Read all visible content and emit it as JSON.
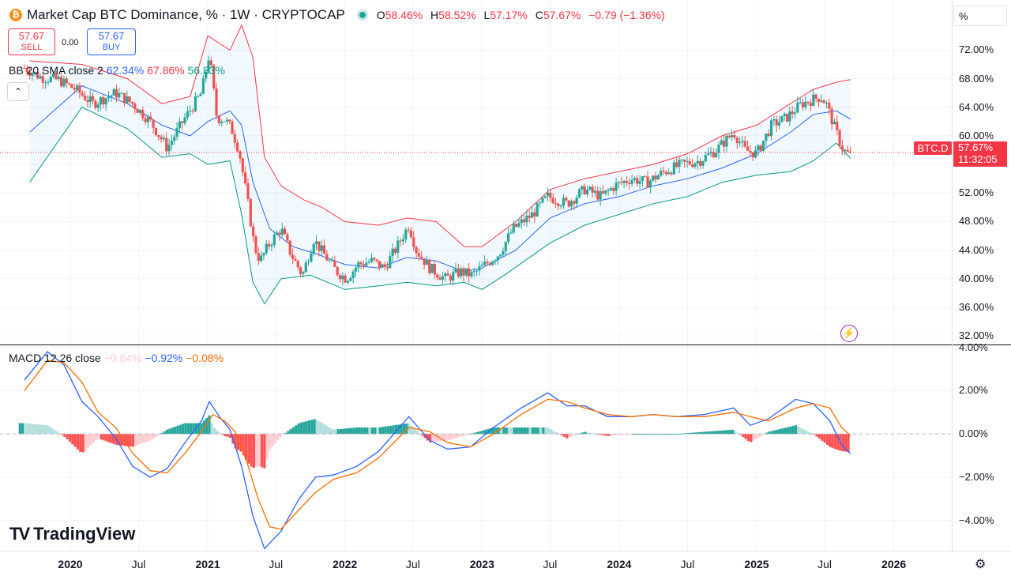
{
  "header": {
    "coin_icon": "bitcoin-icon",
    "coin_glyph": "₿",
    "title": "Market Cap BTC Dominance, % · 1W · CRYPTOCAP",
    "ohlc": {
      "o_label": "O",
      "o": "58.46%",
      "h_label": "H",
      "h": "58.52%",
      "l_label": "L",
      "l": "57.17%",
      "c_label": "C",
      "c": "57.67%",
      "change": "−0.79 (−1.36%)"
    }
  },
  "trade": {
    "sell_price": "57.67",
    "sell_label": "SELL",
    "spread": "0.00",
    "buy_price": "57.67",
    "buy_label": "BUY"
  },
  "indicators": {
    "bb_label": "BB 20 SMA close 2",
    "bb_basis": "62.34%",
    "bb_upper": "67.86%",
    "bb_lower": "56.83%",
    "macd_label": "MACD 12 26 close",
    "macd_hist": "−0.84%",
    "macd_line": "−0.92%",
    "macd_signal": "−0.08%",
    "collapse_glyph": "⌃"
  },
  "scale_button": "%",
  "price_tag": {
    "symbol": "BTC.D",
    "value": "57.67%",
    "countdown": "11:32:05"
  },
  "logo_text": "TradingView",
  "colors": {
    "up": "#26a69a",
    "down": "#ef5350",
    "bb_upper": "#f23645",
    "bb_basis": "#2962ff",
    "bb_lower": "#089981",
    "macd_line": "#2962ff",
    "signal_line": "#ff6d00",
    "hist_up_strong": "#26a69a",
    "hist_up_weak": "#b2dfdb",
    "hist_down_strong": "#ff5252",
    "hist_down_weak": "#ffcdd2"
  },
  "chart_data": [
    {
      "type": "candlestick",
      "title": "Market Cap BTC Dominance, % · 1W · CRYPTOCAP",
      "y_axis_ticks": [
        "72.00%",
        "68.00%",
        "64.00%",
        "60.00%",
        "52.00%",
        "48.00%",
        "44.00%",
        "40.00%",
        "36.00%",
        "32.00%"
      ],
      "y_axis_tick_values": [
        72,
        68,
        64,
        60,
        52,
        48,
        44,
        40,
        36,
        32
      ],
      "ylim": [
        30.8,
        76.8
      ],
      "x_axis_ticks": [
        "2020",
        "Jul",
        "2021",
        "Jul",
        "2022",
        "Jul",
        "2023",
        "Jul",
        "2024",
        "Jul",
        "2025",
        "Jul",
        "2026"
      ],
      "x_tick_dates": [
        "2020-01-01",
        "2020-07-01",
        "2021-01-01",
        "2021-07-01",
        "2022-01-01",
        "2022-07-01",
        "2023-01-01",
        "2023-07-01",
        "2024-01-01",
        "2024-07-01",
        "2025-01-01",
        "2025-07-01",
        "2026-01-01"
      ],
      "last_close": 57.67,
      "close_path": [
        [
          "2019-09-01",
          69.5
        ],
        [
          "2019-10-15",
          68.2
        ],
        [
          "2019-12-01",
          67.8
        ],
        [
          "2020-01-15",
          66.5
        ],
        [
          "2020-03-01",
          64.5
        ],
        [
          "2020-05-01",
          66.0
        ],
        [
          "2020-06-15",
          64.5
        ],
        [
          "2020-08-01",
          62.0
        ],
        [
          "2020-09-15",
          58.3
        ],
        [
          "2020-11-01",
          62.5
        ],
        [
          "2020-12-15",
          66.0
        ],
        [
          "2021-01-05",
          71.5
        ],
        [
          "2021-01-25",
          62.5
        ],
        [
          "2021-02-15",
          62.3
        ],
        [
          "2021-03-05",
          61.0
        ],
        [
          "2021-03-25",
          58.0
        ],
        [
          "2021-04-15",
          51.5
        ],
        [
          "2021-05-05",
          44.5
        ],
        [
          "2021-05-20",
          42.5
        ],
        [
          "2021-06-15",
          45.0
        ],
        [
          "2021-07-15",
          47.0
        ],
        [
          "2021-08-10",
          43.5
        ],
        [
          "2021-09-10",
          40.5
        ],
        [
          "2021-10-10",
          45.5
        ],
        [
          "2021-11-05",
          43.5
        ],
        [
          "2021-12-10",
          41.0
        ],
        [
          "2022-01-05",
          40.0
        ],
        [
          "2022-02-05",
          42.0
        ],
        [
          "2022-03-15",
          42.5
        ],
        [
          "2022-04-15",
          41.5
        ],
        [
          "2022-05-20",
          44.5
        ],
        [
          "2022-06-20",
          47.5
        ],
        [
          "2022-07-10",
          44.0
        ],
        [
          "2022-08-15",
          41.5
        ],
        [
          "2022-09-25",
          40.0
        ],
        [
          "2022-11-05",
          41.0
        ],
        [
          "2022-12-05",
          40.5
        ],
        [
          "2023-01-10",
          42.0
        ],
        [
          "2023-02-15",
          43.5
        ],
        [
          "2023-03-25",
          47.0
        ],
        [
          "2023-05-15",
          49.0
        ],
        [
          "2023-06-25",
          51.5
        ],
        [
          "2023-08-15",
          50.5
        ],
        [
          "2023-10-01",
          52.5
        ],
        [
          "2023-11-15",
          51.5
        ],
        [
          "2023-12-20",
          53.0
        ],
        [
          "2024-02-01",
          54.0
        ],
        [
          "2024-03-15",
          53.5
        ],
        [
          "2024-05-01",
          55.0
        ],
        [
          "2024-06-15",
          56.0
        ],
        [
          "2024-08-01",
          56.5
        ],
        [
          "2024-09-15",
          58.0
        ],
        [
          "2024-11-01",
          60.5
        ],
        [
          "2024-12-01",
          58.0
        ],
        [
          "2025-01-01",
          57.5
        ],
        [
          "2025-02-10",
          61.5
        ],
        [
          "2025-03-20",
          62.5
        ],
        [
          "2025-05-01",
          64.5
        ],
        [
          "2025-06-20",
          65.5
        ],
        [
          "2025-07-05",
          64.5
        ],
        [
          "2025-07-25",
          61.5
        ],
        [
          "2025-08-15",
          58.5
        ],
        [
          "2025-08-28",
          57.5
        ],
        [
          "2025-09-08",
          57.67
        ]
      ],
      "bollinger_upper": [
        [
          "2019-09-15",
          70.5
        ],
        [
          "2020-02-01",
          70.0
        ],
        [
          "2020-06-01",
          68.0
        ],
        [
          "2020-09-01",
          64.5
        ],
        [
          "2020-11-15",
          65.5
        ],
        [
          "2021-01-01",
          74.0
        ],
        [
          "2021-03-01",
          72.0
        ],
        [
          "2021-04-01",
          75.5
        ],
        [
          "2021-05-01",
          71.0
        ],
        [
          "2021-06-01",
          57.0
        ],
        [
          "2021-07-15",
          53.0
        ],
        [
          "2021-09-15",
          51.0
        ],
        [
          "2021-11-01",
          50.0
        ],
        [
          "2022-01-01",
          48.0
        ],
        [
          "2022-04-01",
          47.5
        ],
        [
          "2022-06-15",
          48.5
        ],
        [
          "2022-09-01",
          48.0
        ],
        [
          "2022-11-15",
          44.5
        ],
        [
          "2023-01-01",
          44.5
        ],
        [
          "2023-04-01",
          48.0
        ],
        [
          "2023-07-01",
          52.5
        ],
        [
          "2023-10-01",
          54.0
        ],
        [
          "2024-01-01",
          55.0
        ],
        [
          "2024-04-01",
          56.0
        ],
        [
          "2024-07-01",
          57.5
        ],
        [
          "2024-10-01",
          60.0
        ],
        [
          "2025-01-01",
          61.5
        ],
        [
          "2025-04-01",
          64.5
        ],
        [
          "2025-06-01",
          66.5
        ],
        [
          "2025-08-01",
          67.5
        ],
        [
          "2025-09-08",
          67.86
        ]
      ],
      "bollinger_basis": [
        [
          "2019-09-15",
          60.5
        ],
        [
          "2020-02-01",
          67.0
        ],
        [
          "2020-06-01",
          64.5
        ],
        [
          "2020-09-01",
          61.5
        ],
        [
          "2020-11-15",
          60.0
        ],
        [
          "2021-01-01",
          62.0
        ],
        [
          "2021-03-01",
          63.5
        ],
        [
          "2021-04-01",
          61.5
        ],
        [
          "2021-05-01",
          53.5
        ],
        [
          "2021-06-15",
          47.0
        ],
        [
          "2021-08-15",
          44.5
        ],
        [
          "2021-10-15",
          43.5
        ],
        [
          "2022-01-01",
          42.0
        ],
        [
          "2022-04-01",
          41.5
        ],
        [
          "2022-06-15",
          43.0
        ],
        [
          "2022-09-01",
          42.5
        ],
        [
          "2022-11-15",
          41.0
        ],
        [
          "2023-01-01",
          41.5
        ],
        [
          "2023-04-01",
          44.0
        ],
        [
          "2023-07-01",
          48.5
        ],
        [
          "2023-10-01",
          50.5
        ],
        [
          "2024-01-01",
          51.5
        ],
        [
          "2024-04-01",
          53.0
        ],
        [
          "2024-07-01",
          54.0
        ],
        [
          "2024-10-01",
          55.5
        ],
        [
          "2025-01-01",
          57.5
        ],
        [
          "2025-04-01",
          60.5
        ],
        [
          "2025-06-01",
          63.0
        ],
        [
          "2025-08-01",
          63.5
        ],
        [
          "2025-09-08",
          62.34
        ]
      ],
      "bollinger_lower": [
        [
          "2019-09-15",
          53.5
        ],
        [
          "2020-02-01",
          64.0
        ],
        [
          "2020-06-01",
          61.0
        ],
        [
          "2020-09-01",
          57.0
        ],
        [
          "2020-11-15",
          57.5
        ],
        [
          "2021-01-01",
          56.0
        ],
        [
          "2021-03-01",
          56.5
        ],
        [
          "2021-04-01",
          49.0
        ],
        [
          "2021-05-01",
          39.5
        ],
        [
          "2021-06-01",
          36.5
        ],
        [
          "2021-07-15",
          40.0
        ],
        [
          "2021-10-01",
          40.5
        ],
        [
          "2022-01-01",
          38.5
        ],
        [
          "2022-04-01",
          39.0
        ],
        [
          "2022-06-15",
          39.5
        ],
        [
          "2022-09-01",
          39.0
        ],
        [
          "2022-11-15",
          39.5
        ],
        [
          "2023-01-01",
          38.5
        ],
        [
          "2023-03-01",
          40.5
        ],
        [
          "2023-07-01",
          45.0
        ],
        [
          "2023-10-01",
          47.5
        ],
        [
          "2024-01-01",
          49.0
        ],
        [
          "2024-04-01",
          50.5
        ],
        [
          "2024-07-01",
          51.5
        ],
        [
          "2024-10-01",
          53.5
        ],
        [
          "2025-01-01",
          54.5
        ],
        [
          "2025-04-01",
          55.0
        ],
        [
          "2025-06-01",
          56.5
        ],
        [
          "2025-08-01",
          59.0
        ],
        [
          "2025-09-08",
          56.83
        ]
      ]
    },
    {
      "type": "line",
      "title": "MACD 12 26 close",
      "y_axis_ticks": [
        "4.00%",
        "2.00%",
        "0.00%",
        "−2.00%",
        "−4.00%"
      ],
      "y_axis_tick_values": [
        4,
        2,
        0,
        -2,
        -4
      ],
      "ylim": [
        -5.4,
        4.1
      ],
      "macd": [
        [
          "2019-09-01",
          2.5
        ],
        [
          "2019-11-01",
          3.8
        ],
        [
          "2019-12-15",
          3.2
        ],
        [
          "2020-02-01",
          1.5
        ],
        [
          "2020-03-15",
          0.8
        ],
        [
          "2020-05-01",
          -0.2
        ],
        [
          "2020-06-15",
          -1.5
        ],
        [
          "2020-08-01",
          -2.0
        ],
        [
          "2020-09-15",
          -1.6
        ],
        [
          "2020-11-01",
          -0.4
        ],
        [
          "2020-12-15",
          0.6
        ],
        [
          "2021-01-05",
          1.5
        ],
        [
          "2021-02-01",
          0.8
        ],
        [
          "2021-03-01",
          0.2
        ],
        [
          "2021-04-01",
          -1.5
        ],
        [
          "2021-05-01",
          -3.8
        ],
        [
          "2021-06-01",
          -5.3
        ],
        [
          "2021-07-15",
          -4.5
        ],
        [
          "2021-09-01",
          -3.0
        ],
        [
          "2021-10-15",
          -2.0
        ],
        [
          "2021-12-01",
          -1.9
        ],
        [
          "2022-02-01",
          -1.5
        ],
        [
          "2022-04-01",
          -0.8
        ],
        [
          "2022-06-20",
          0.8
        ],
        [
          "2022-08-15",
          -0.3
        ],
        [
          "2022-10-01",
          -0.7
        ],
        [
          "2022-12-01",
          -0.6
        ],
        [
          "2023-02-01",
          0.3
        ],
        [
          "2023-04-15",
          1.2
        ],
        [
          "2023-06-25",
          1.9
        ],
        [
          "2023-08-15",
          1.3
        ],
        [
          "2023-10-01",
          1.3
        ],
        [
          "2023-12-01",
          0.8
        ],
        [
          "2024-02-01",
          0.8
        ],
        [
          "2024-04-01",
          0.9
        ],
        [
          "2024-06-01",
          0.8
        ],
        [
          "2024-08-15",
          0.9
        ],
        [
          "2024-11-01",
          1.2
        ],
        [
          "2024-12-15",
          0.4
        ],
        [
          "2025-02-01",
          0.7
        ],
        [
          "2025-04-15",
          1.6
        ],
        [
          "2025-06-01",
          1.4
        ],
        [
          "2025-07-15",
          0.6
        ],
        [
          "2025-08-15",
          -0.5
        ],
        [
          "2025-09-08",
          -0.92
        ]
      ],
      "signal": [
        [
          "2019-09-01",
          2.0
        ],
        [
          "2019-11-01",
          3.4
        ],
        [
          "2019-12-15",
          3.3
        ],
        [
          "2020-02-01",
          2.4
        ],
        [
          "2020-03-15",
          1.0
        ],
        [
          "2020-05-01",
          0.3
        ],
        [
          "2020-06-15",
          -0.9
        ],
        [
          "2020-08-01",
          -1.7
        ],
        [
          "2020-09-15",
          -1.8
        ],
        [
          "2020-11-01",
          -0.9
        ],
        [
          "2020-12-15",
          0.1
        ],
        [
          "2021-01-15",
          0.9
        ],
        [
          "2021-02-15",
          0.6
        ],
        [
          "2021-03-15",
          0.1
        ],
        [
          "2021-04-15",
          -1.3
        ],
        [
          "2021-05-15",
          -3.0
        ],
        [
          "2021-06-15",
          -4.3
        ],
        [
          "2021-07-15",
          -4.4
        ],
        [
          "2021-09-01",
          -3.5
        ],
        [
          "2021-10-15",
          -2.7
        ],
        [
          "2021-12-01",
          -2.1
        ],
        [
          "2022-02-01",
          -1.8
        ],
        [
          "2022-04-01",
          -1.1
        ],
        [
          "2022-06-20",
          0.3
        ],
        [
          "2022-08-15",
          0.1
        ],
        [
          "2022-10-01",
          -0.4
        ],
        [
          "2022-12-01",
          -0.6
        ],
        [
          "2023-02-01",
          0.0
        ],
        [
          "2023-04-15",
          0.9
        ],
        [
          "2023-06-25",
          1.6
        ],
        [
          "2023-08-15",
          1.5
        ],
        [
          "2023-10-01",
          1.2
        ],
        [
          "2023-12-01",
          0.9
        ],
        [
          "2024-02-01",
          0.8
        ],
        [
          "2024-04-01",
          0.9
        ],
        [
          "2024-06-01",
          0.8
        ],
        [
          "2024-08-15",
          0.8
        ],
        [
          "2024-11-01",
          1.0
        ],
        [
          "2024-12-15",
          0.8
        ],
        [
          "2025-02-01",
          0.6
        ],
        [
          "2025-04-15",
          1.2
        ],
        [
          "2025-06-01",
          1.4
        ],
        [
          "2025-07-15",
          1.2
        ],
        [
          "2025-08-15",
          0.3
        ],
        [
          "2025-09-08",
          -0.08
        ]
      ],
      "histogram_last": -0.84
    }
  ]
}
